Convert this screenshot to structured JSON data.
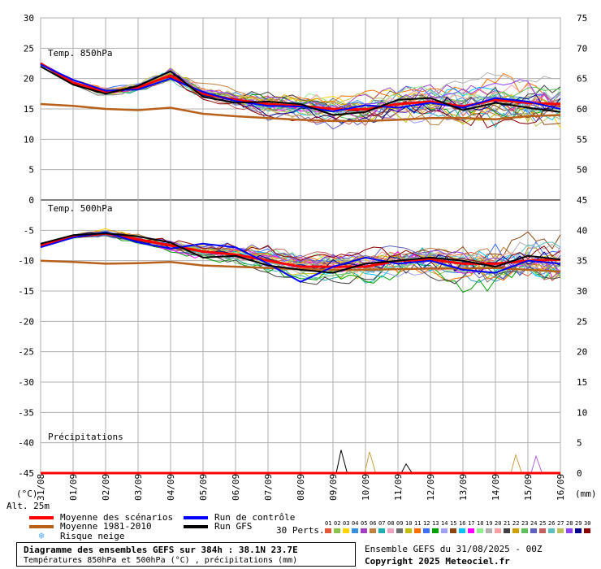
{
  "chart_data": {
    "type": "line",
    "title": "Diagramme des ensembles GEFS sur 384h : 38.1N 23.7E",
    "subtitle": "Températures 850hPa et 500hPa (°C) , précipitations (mm)",
    "x_tick_labels": [
      "31/08",
      "01/09",
      "02/09",
      "03/09",
      "04/09",
      "05/09",
      "06/09",
      "07/09",
      "08/09",
      "09/09",
      "10/09",
      "11/09",
      "12/09",
      "13/09",
      "14/09",
      "15/09",
      "16/09"
    ],
    "left_axis": {
      "unit_label": "(°C)",
      "ticks": [
        30,
        25,
        20,
        15,
        10,
        5,
        0,
        -5,
        -10,
        -15,
        -20,
        -25,
        -30,
        -35,
        -40,
        -45
      ],
      "range": [
        -45,
        30
      ]
    },
    "right_axis": {
      "unit_label": "(mm)",
      "ticks": [
        75,
        70,
        65,
        60,
        55,
        50,
        45,
        40,
        35,
        30,
        25,
        20,
        15,
        10,
        5,
        0
      ],
      "range": [
        0,
        75
      ]
    },
    "grid": true,
    "panels": {
      "t850_label": "Temp. 850hPa",
      "t500_label": "Temp. 500hPa",
      "precip_label": "Précipitations"
    },
    "series": [
      {
        "name": "Moyenne des scénarios",
        "color": "#ff0000",
        "panel": "t850",
        "x": [
          0,
          8,
          16,
          24,
          32,
          40,
          48,
          56,
          64,
          72,
          80,
          88,
          96,
          104,
          112,
          120,
          128
        ],
        "values": [
          22.5,
          19.3,
          17.8,
          18.5,
          20.5,
          17.5,
          16.5,
          15.8,
          15.5,
          15.0,
          14.9,
          15.8,
          16.2,
          15.4,
          16.5,
          16.0,
          15.8
        ]
      },
      {
        "name": "Moyenne 1981-2010",
        "color": "#b8611c",
        "panel": "t850",
        "x": [
          0,
          8,
          16,
          24,
          32,
          40,
          48,
          56,
          64,
          72,
          80,
          88,
          96,
          104,
          112,
          120,
          128
        ],
        "values": [
          15.8,
          15.5,
          15.0,
          14.8,
          15.2,
          14.2,
          13.8,
          13.5,
          13.2,
          13.0,
          13.0,
          13.2,
          13.5,
          13.5,
          13.3,
          13.8,
          14.0
        ]
      },
      {
        "name": "Run de contrôle",
        "color": "#0000ff",
        "panel": "t850",
        "x": [
          0,
          8,
          16,
          24,
          32,
          40,
          48,
          56,
          64,
          72,
          80,
          88,
          96,
          104,
          112,
          120,
          128
        ],
        "values": [
          22.3,
          19.8,
          18.0,
          18.2,
          20.0,
          17.8,
          16.3,
          15.5,
          15.4,
          14.6,
          15.6,
          15.2,
          16.0,
          15.2,
          16.8,
          16.2,
          15.0
        ]
      },
      {
        "name": "Run GFS",
        "color": "#000000",
        "panel": "t850",
        "x": [
          0,
          8,
          16,
          24,
          32,
          40,
          48,
          56,
          64,
          72,
          80,
          88,
          96,
          104,
          112,
          120,
          128
        ],
        "values": [
          22.0,
          19.0,
          17.5,
          18.8,
          21.2,
          17.0,
          16.0,
          16.2,
          15.8,
          14.0,
          14.5,
          16.5,
          16.8,
          14.8,
          16.0,
          15.2,
          14.5
        ]
      },
      {
        "name": "Moyenne des scénarios",
        "color": "#ff0000",
        "panel": "t500",
        "x": [
          0,
          8,
          16,
          24,
          32,
          40,
          48,
          56,
          64,
          72,
          80,
          88,
          96,
          104,
          112,
          120,
          128
        ],
        "values": [
          -7.5,
          -6.0,
          -5.5,
          -6.5,
          -7.5,
          -8.5,
          -9.0,
          -10.0,
          -11.0,
          -11.0,
          -11.0,
          -10.0,
          -9.8,
          -10.5,
          -10.5,
          -10.0,
          -9.8
        ]
      },
      {
        "name": "Moyenne 1981-2010",
        "color": "#b8611c",
        "panel": "t500",
        "x": [
          0,
          8,
          16,
          24,
          32,
          40,
          48,
          56,
          64,
          72,
          80,
          88,
          96,
          104,
          112,
          120,
          128
        ],
        "values": [
          -10.0,
          -10.2,
          -10.5,
          -10.4,
          -10.2,
          -10.8,
          -11.0,
          -11.2,
          -11.4,
          -11.5,
          -11.5,
          -11.4,
          -11.3,
          -11.3,
          -11.2,
          -11.5,
          -11.8
        ]
      },
      {
        "name": "Run de contrôle",
        "color": "#0000ff",
        "panel": "t500",
        "x": [
          0,
          8,
          16,
          24,
          32,
          40,
          48,
          56,
          64,
          72,
          80,
          88,
          96,
          104,
          112,
          120,
          128
        ],
        "values": [
          -7.8,
          -6.2,
          -5.3,
          -7.0,
          -8.0,
          -7.2,
          -7.8,
          -10.5,
          -13.5,
          -11.0,
          -9.5,
          -10.5,
          -10.0,
          -11.5,
          -12.0,
          -10.0,
          -10.5
        ]
      },
      {
        "name": "Run GFS",
        "color": "#000000",
        "panel": "t500",
        "x": [
          0,
          8,
          16,
          24,
          32,
          40,
          48,
          56,
          64,
          72,
          80,
          88,
          96,
          104,
          112,
          120,
          128
        ],
        "values": [
          -7.2,
          -5.8,
          -5.5,
          -6.0,
          -7.0,
          -9.5,
          -9.2,
          -10.8,
          -11.5,
          -12.0,
          -10.5,
          -10.0,
          -9.5,
          -10.0,
          -11.0,
          -9.2,
          -9.8
        ]
      },
      {
        "name": "Moyenne des scénarios",
        "color": "#ff0000",
        "panel": "precip",
        "x": [
          0,
          8,
          16,
          24,
          32,
          40,
          48,
          56,
          64,
          72,
          80,
          88,
          96,
          104,
          112,
          120,
          128
        ],
        "values": [
          0,
          0,
          0,
          0,
          0,
          0,
          0,
          0,
          0,
          0,
          0,
          0,
          0,
          0,
          0,
          0,
          0
        ]
      }
    ],
    "precip_spikes": [
      {
        "x": 74,
        "value": 3.8,
        "color": "#000000"
      },
      {
        "x": 81,
        "value": 3.5,
        "color": "#c8a040"
      },
      {
        "x": 90,
        "value": 1.5,
        "color": "#000000"
      },
      {
        "x": 117,
        "value": 3.0,
        "color": "#c8a040"
      },
      {
        "x": 122,
        "value": 2.8,
        "color": "#b060e0"
      }
    ]
  },
  "legend": {
    "items": [
      {
        "label": "Moyenne des scénarios",
        "color": "#ff0000"
      },
      {
        "label": "Moyenne 1981-2010",
        "color": "#b8611c"
      },
      {
        "label": "Run de contrôle",
        "color": "#0000ff"
      },
      {
        "label": "Run GFS",
        "color": "#000000"
      },
      {
        "label": "Risque neige",
        "icon": "snowflake-icon",
        "color": "#5aa9e6"
      }
    ],
    "perts_label": "30 Perts.",
    "perturbations": [
      {
        "num": "01",
        "color": "#e05a3a"
      },
      {
        "num": "02",
        "color": "#8bc34a"
      },
      {
        "num": "03",
        "color": "#ffd400"
      },
      {
        "num": "04",
        "color": "#3a8ee0"
      },
      {
        "num": "05",
        "color": "#a040c0"
      },
      {
        "num": "06",
        "color": "#c08040"
      },
      {
        "num": "07",
        "color": "#20b0b0"
      },
      {
        "num": "08",
        "color": "#f0a0c0"
      },
      {
        "num": "09",
        "color": "#707070"
      },
      {
        "num": "10",
        "color": "#c0c000"
      },
      {
        "num": "11",
        "color": "#ff7000"
      },
      {
        "num": "12",
        "color": "#4070ff"
      },
      {
        "num": "13",
        "color": "#00a000"
      },
      {
        "num": "14",
        "color": "#a0a0ff"
      },
      {
        "num": "15",
        "color": "#8b4513"
      },
      {
        "num": "16",
        "color": "#00c0ff"
      },
      {
        "num": "17",
        "color": "#ff00ff"
      },
      {
        "num": "18",
        "color": "#90ee90"
      },
      {
        "num": "19",
        "color": "#b0b0b0"
      },
      {
        "num": "20",
        "color": "#ffa0a0"
      },
      {
        "num": "21",
        "color": "#404040"
      },
      {
        "num": "22",
        "color": "#d0a000"
      },
      {
        "num": "23",
        "color": "#60c060"
      },
      {
        "num": "24",
        "color": "#6060c0"
      },
      {
        "num": "25",
        "color": "#c06060"
      },
      {
        "num": "26",
        "color": "#60c0c0"
      },
      {
        "num": "27",
        "color": "#c0c060"
      },
      {
        "num": "28",
        "color": "#9040ff"
      },
      {
        "num": "29",
        "color": "#00008b"
      },
      {
        "num": "30",
        "color": "#8b0000"
      }
    ]
  },
  "footer": {
    "title": "Diagramme des ensembles GEFS sur 384h : 38.1N 23.7E",
    "subtitle": "Températures 850hPa et 500hPa (°C) , précipitations (mm)",
    "altitude": "Alt. 25m",
    "run_info": "Ensemble GEFS du 31/08/2025 - 00Z",
    "copyright": "Copyright 2025 Meteociel.fr"
  },
  "colors": {
    "grid": "#b0b0b0",
    "zero_line": "#000000",
    "ensemble_palette": [
      "#e05a3a",
      "#8bc34a",
      "#ffd400",
      "#3a8ee0",
      "#a040c0",
      "#c08040",
      "#20b0b0",
      "#f0a0c0",
      "#707070",
      "#c0c000",
      "#ff7000",
      "#4070ff",
      "#00a000",
      "#a0a0ff",
      "#8b4513",
      "#00c0ff",
      "#ff00ff",
      "#90ee90",
      "#b0b0b0",
      "#ffa0a0",
      "#404040",
      "#d0a000",
      "#60c060",
      "#6060c0",
      "#c06060",
      "#60c0c0",
      "#c0c060",
      "#9040ff",
      "#00008b",
      "#8b0000"
    ]
  }
}
